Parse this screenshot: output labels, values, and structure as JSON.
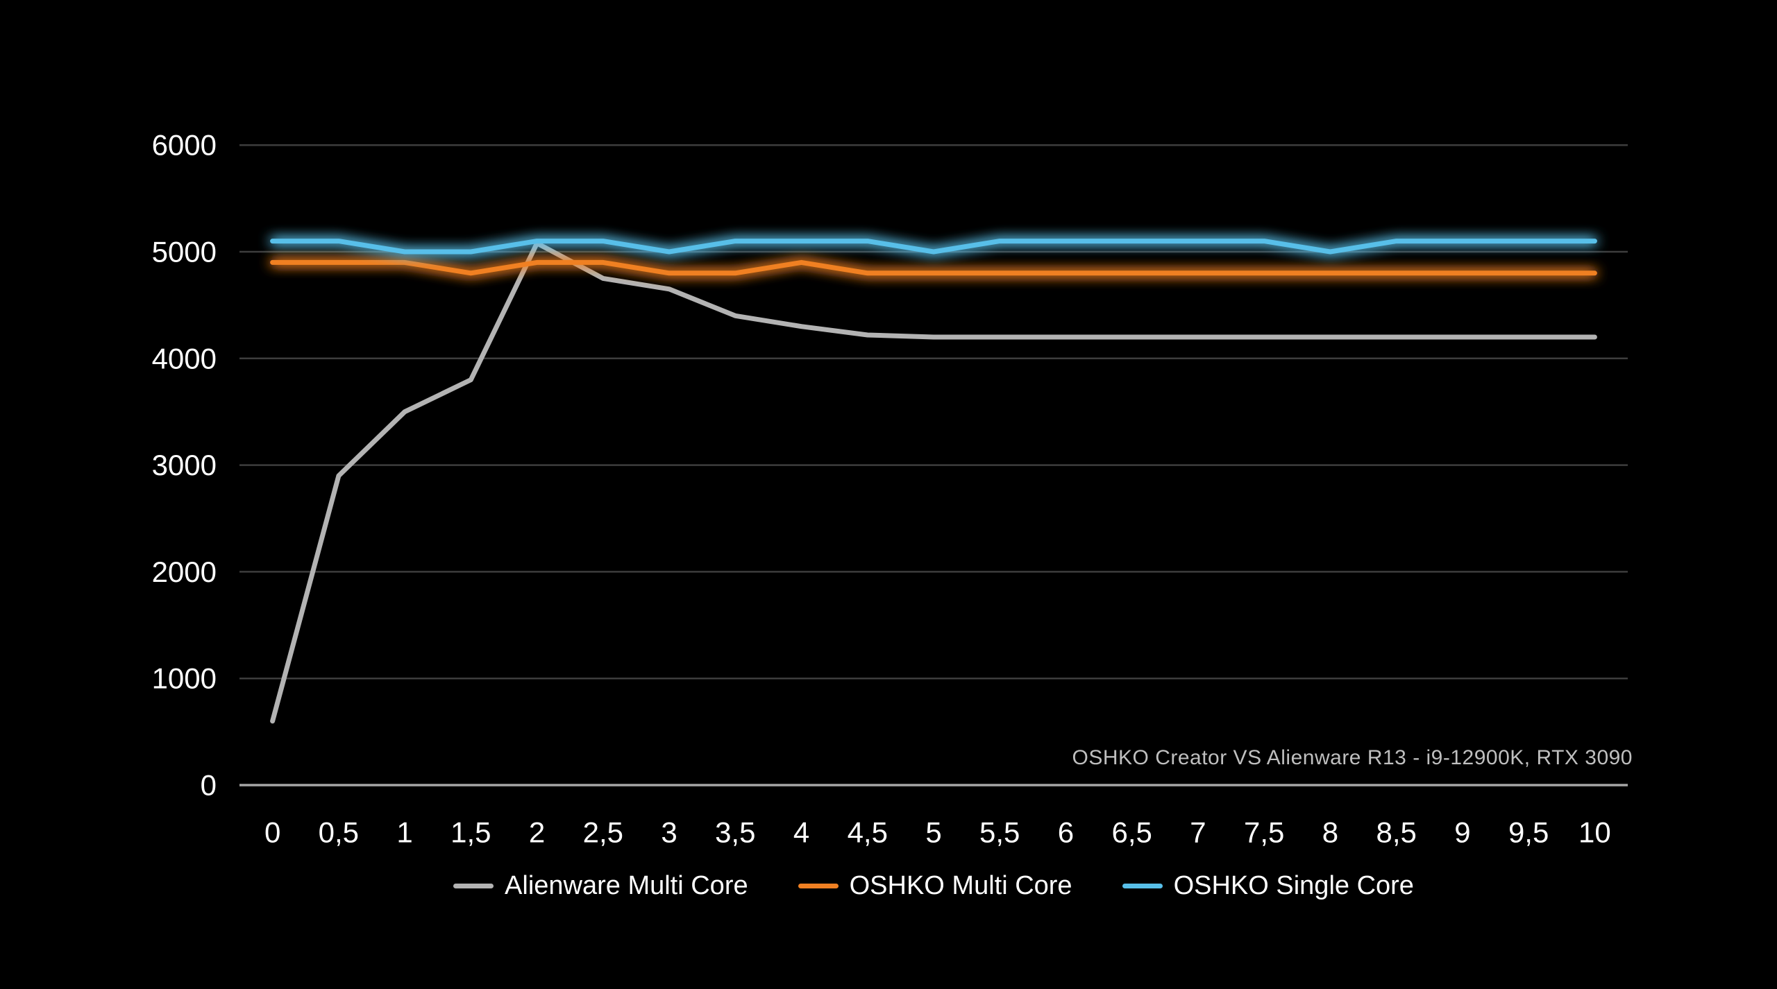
{
  "chart_data": {
    "type": "line",
    "title": "",
    "background": "#000000",
    "annotation": "OSHKO Creator VS Alienware R13 - i9-12900K, RTX 3090",
    "legend_position": "bottom",
    "grid": true,
    "ylim": [
      0,
      6000
    ],
    "y_tick_values": [
      0,
      1000,
      2000,
      3000,
      4000,
      5000,
      6000
    ],
    "y_tick_labels": [
      "0",
      "1000",
      "2000",
      "3000",
      "4000",
      "5000",
      "6000"
    ],
    "x_categories": [
      "0",
      "0,5",
      "1",
      "1,5",
      "2",
      "2,5",
      "3",
      "3,5",
      "4",
      "4,5",
      "5",
      "5,5",
      "6",
      "6,5",
      "7",
      "7,5",
      "8",
      "8,5",
      "9",
      "9,5",
      "10"
    ],
    "series": [
      {
        "name": "Alienware Multi Core",
        "color": "#b3b3b3",
        "glow": false,
        "values": [
          600,
          2900,
          3500,
          3800,
          5080,
          4750,
          4650,
          4400,
          4300,
          4220,
          4200,
          4200,
          4200,
          4200,
          4200,
          4200,
          4200,
          4200,
          4200,
          4200,
          4200
        ]
      },
      {
        "name": "OSHKO Multi Core",
        "color": "#f08022",
        "glow": true,
        "values": [
          4900,
          4900,
          4900,
          4800,
          4900,
          4900,
          4800,
          4800,
          4900,
          4800,
          4800,
          4800,
          4800,
          4800,
          4800,
          4800,
          4800,
          4800,
          4800,
          4800,
          4800
        ]
      },
      {
        "name": "OSHKO Single Core",
        "color": "#58bfe9",
        "glow": true,
        "values": [
          5100,
          5100,
          5000,
          5000,
          5100,
          5100,
          5000,
          5100,
          5100,
          5100,
          5000,
          5100,
          5100,
          5100,
          5100,
          5100,
          5000,
          5100,
          5100,
          5100,
          5100
        ]
      }
    ],
    "colors": {
      "grid": "#3d3d3d",
      "axis_line": "#a6a6a6",
      "tick_label": "#ffffff",
      "annotation": "#bfbfbf",
      "legend_text": "#ffffff"
    }
  }
}
